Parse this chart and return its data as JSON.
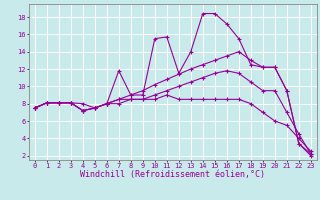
{
  "xlabel": "Windchill (Refroidissement éolien,°C)",
  "bg_color": "#c8eaea",
  "line_color": "#990099",
  "grid_color": "#ffffff",
  "lines": [
    {
      "x": [
        0,
        1,
        2,
        3,
        4,
        5,
        6,
        7,
        8,
        9,
        10,
        11,
        12,
        13,
        14,
        15,
        16,
        17,
        18,
        19,
        20,
        21,
        22,
        23
      ],
      "y": [
        7.5,
        8.1,
        8.1,
        8.1,
        7.2,
        7.5,
        8.0,
        11.8,
        9.0,
        9.0,
        15.5,
        15.7,
        11.5,
        14.0,
        18.4,
        18.4,
        17.2,
        15.5,
        12.5,
        12.2,
        12.2,
        9.5,
        3.4,
        2.0
      ]
    },
    {
      "x": [
        0,
        1,
        2,
        3,
        4,
        5,
        6,
        7,
        8,
        9,
        10,
        11,
        12,
        13,
        14,
        15,
        16,
        17,
        18,
        19,
        20,
        21,
        22,
        23
      ],
      "y": [
        7.5,
        8.1,
        8.1,
        8.1,
        8.0,
        7.5,
        8.0,
        8.5,
        9.0,
        9.5,
        10.2,
        10.8,
        11.4,
        12.0,
        12.5,
        13.0,
        13.5,
        14.0,
        13.0,
        12.2,
        12.2,
        9.5,
        3.4,
        2.2
      ]
    },
    {
      "x": [
        0,
        1,
        2,
        3,
        4,
        5,
        6,
        7,
        8,
        9,
        10,
        11,
        12,
        13,
        14,
        15,
        16,
        17,
        18,
        19,
        20,
        21,
        22,
        23
      ],
      "y": [
        7.5,
        8.1,
        8.1,
        8.1,
        7.2,
        7.5,
        8.0,
        8.5,
        8.5,
        8.5,
        9.0,
        9.5,
        10.0,
        10.5,
        11.0,
        11.5,
        11.8,
        11.5,
        10.5,
        9.5,
        9.5,
        7.0,
        4.5,
        2.2
      ]
    },
    {
      "x": [
        0,
        1,
        2,
        3,
        4,
        5,
        6,
        7,
        8,
        9,
        10,
        11,
        12,
        13,
        14,
        15,
        16,
        17,
        18,
        19,
        20,
        21,
        22,
        23
      ],
      "y": [
        7.5,
        8.1,
        8.1,
        8.1,
        7.2,
        7.5,
        8.0,
        8.0,
        8.5,
        8.5,
        8.5,
        9.0,
        8.5,
        8.5,
        8.5,
        8.5,
        8.5,
        8.5,
        8.0,
        7.0,
        6.0,
        5.5,
        4.0,
        2.5
      ]
    }
  ],
  "xlim": [
    -0.5,
    23.5
  ],
  "ylim": [
    1.5,
    19.5
  ],
  "yticks": [
    2,
    4,
    6,
    8,
    10,
    12,
    14,
    16,
    18
  ],
  "xticks": [
    0,
    1,
    2,
    3,
    4,
    5,
    6,
    7,
    8,
    9,
    10,
    11,
    12,
    13,
    14,
    15,
    16,
    17,
    18,
    19,
    20,
    21,
    22,
    23
  ],
  "tick_fontsize": 5.0,
  "xlabel_fontsize": 6.0,
  "figsize": [
    3.2,
    2.0
  ],
  "dpi": 100
}
